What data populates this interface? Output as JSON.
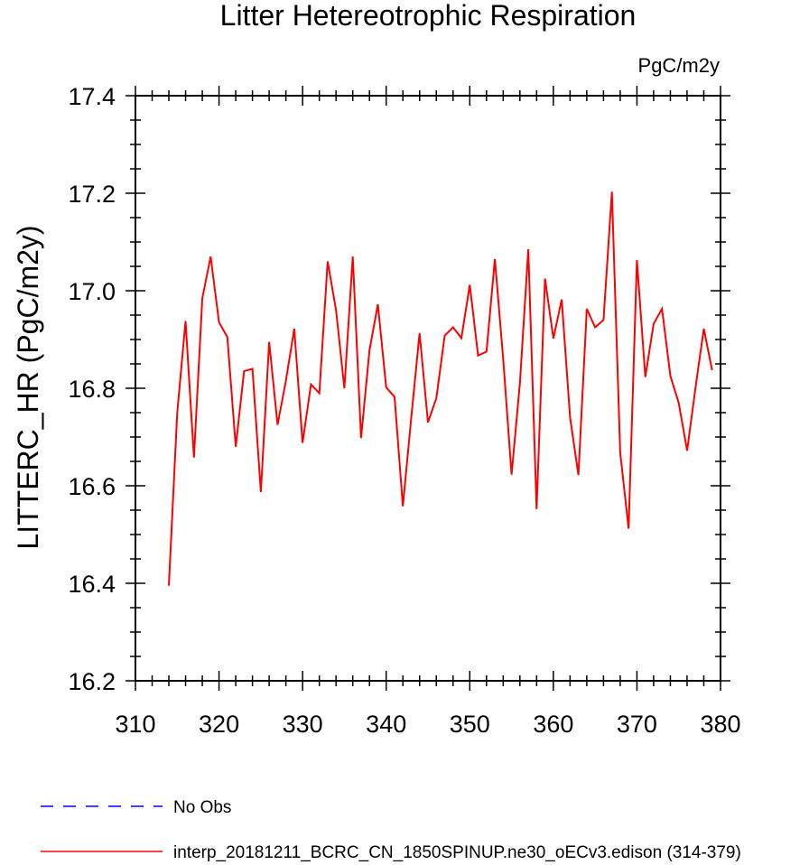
{
  "chart_data": {
    "type": "line",
    "title": "Litter Hetereotrophic Respiration",
    "units": "PgC/m2y",
    "xlabel": "",
    "ylabel": "LITTERC_HR  (PgC/m2y)",
    "xlim": [
      310,
      380
    ],
    "ylim": [
      16.2,
      17.4
    ],
    "x_ticks": [
      310,
      320,
      330,
      340,
      350,
      360,
      370,
      380
    ],
    "y_ticks": [
      16.2,
      16.4,
      16.6,
      16.8,
      17.0,
      17.2,
      17.4
    ],
    "x_tick_labels": [
      "310",
      "320",
      "330",
      "340",
      "350",
      "360",
      "370",
      "380"
    ],
    "y_tick_labels": [
      "16.2",
      "16.4",
      "16.6",
      "16.8",
      "17.0",
      "17.2",
      "17.4"
    ],
    "grid": false,
    "legend_position": "bottom",
    "series": [
      {
        "name": "interp_20181211_BCRC_CN_1850SPINUP.ne30_oECv3.edison (314-379)",
        "color": "#ff0000",
        "dash": "solid",
        "x": [
          314,
          315,
          316,
          317,
          318,
          319,
          320,
          321,
          322,
          323,
          324,
          325,
          326,
          327,
          328,
          329,
          330,
          331,
          332,
          333,
          334,
          335,
          336,
          337,
          338,
          339,
          340,
          341,
          342,
          343,
          344,
          345,
          346,
          347,
          348,
          349,
          350,
          351,
          352,
          353,
          354,
          355,
          356,
          357,
          358,
          359,
          360,
          361,
          362,
          363,
          364,
          365,
          366,
          367,
          368,
          369,
          370,
          371,
          372,
          373,
          374,
          375,
          376,
          377,
          378,
          379
        ],
        "values": [
          16.395,
          16.75,
          16.938,
          16.658,
          16.985,
          17.07,
          16.935,
          16.905,
          16.68,
          16.835,
          16.84,
          16.587,
          16.895,
          16.725,
          16.815,
          16.922,
          16.688,
          16.808,
          16.79,
          17.06,
          16.96,
          16.8,
          17.07,
          16.698,
          16.878,
          16.972,
          16.802,
          16.782,
          16.558,
          16.74,
          16.913,
          16.73,
          16.78,
          16.908,
          16.925,
          16.903,
          17.012,
          16.867,
          16.875,
          17.065,
          16.86,
          16.623,
          16.81,
          17.085,
          16.552,
          17.025,
          16.902,
          16.982,
          16.74,
          16.622,
          16.963,
          16.925,
          16.94,
          17.203,
          16.668,
          16.512,
          17.063,
          16.823,
          16.932,
          16.963,
          16.825,
          16.77,
          16.672,
          16.8,
          16.922,
          16.837
        ]
      },
      {
        "name": "No Obs",
        "color": "#0000ff",
        "dash": "dashed",
        "x": [],
        "values": []
      }
    ]
  }
}
